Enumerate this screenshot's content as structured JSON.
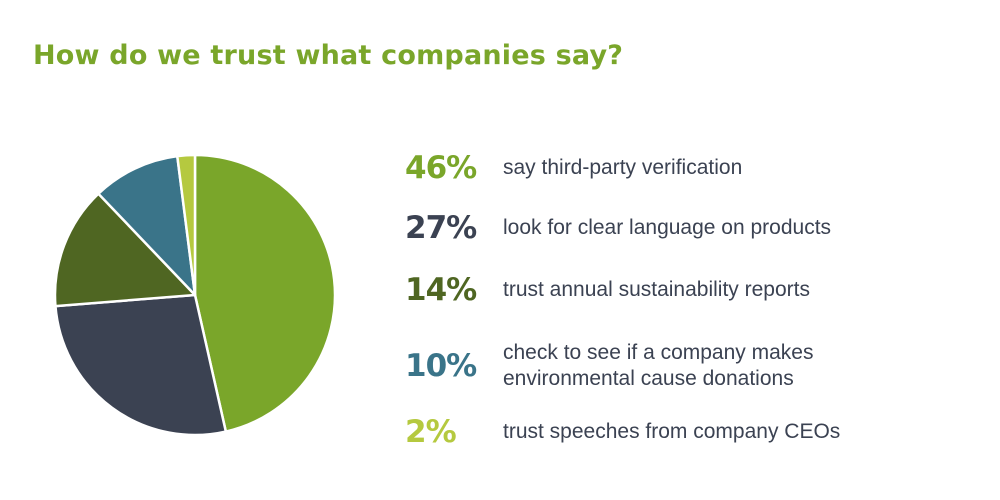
{
  "chart_data": {
    "type": "pie",
    "title": "How do we trust what companies say?",
    "slices": [
      {
        "value": 46,
        "value_label": "46%",
        "label": "say third-party verification",
        "color": "#7aa62a"
      },
      {
        "value": 27,
        "value_label": "27%",
        "label": "look for clear language on products",
        "color": "#3b4252"
      },
      {
        "value": 14,
        "value_label": "14%",
        "label": "trust annual sustainability reports",
        "color": "#4f6622"
      },
      {
        "value": 10,
        "value_label": "10%",
        "label": "check to see if a company makes environmental cause donations",
        "color": "#3a7489"
      },
      {
        "value": 2,
        "value_label": "2%",
        "label": "trust speeches from company CEOs",
        "color": "#b5c93f"
      }
    ]
  }
}
